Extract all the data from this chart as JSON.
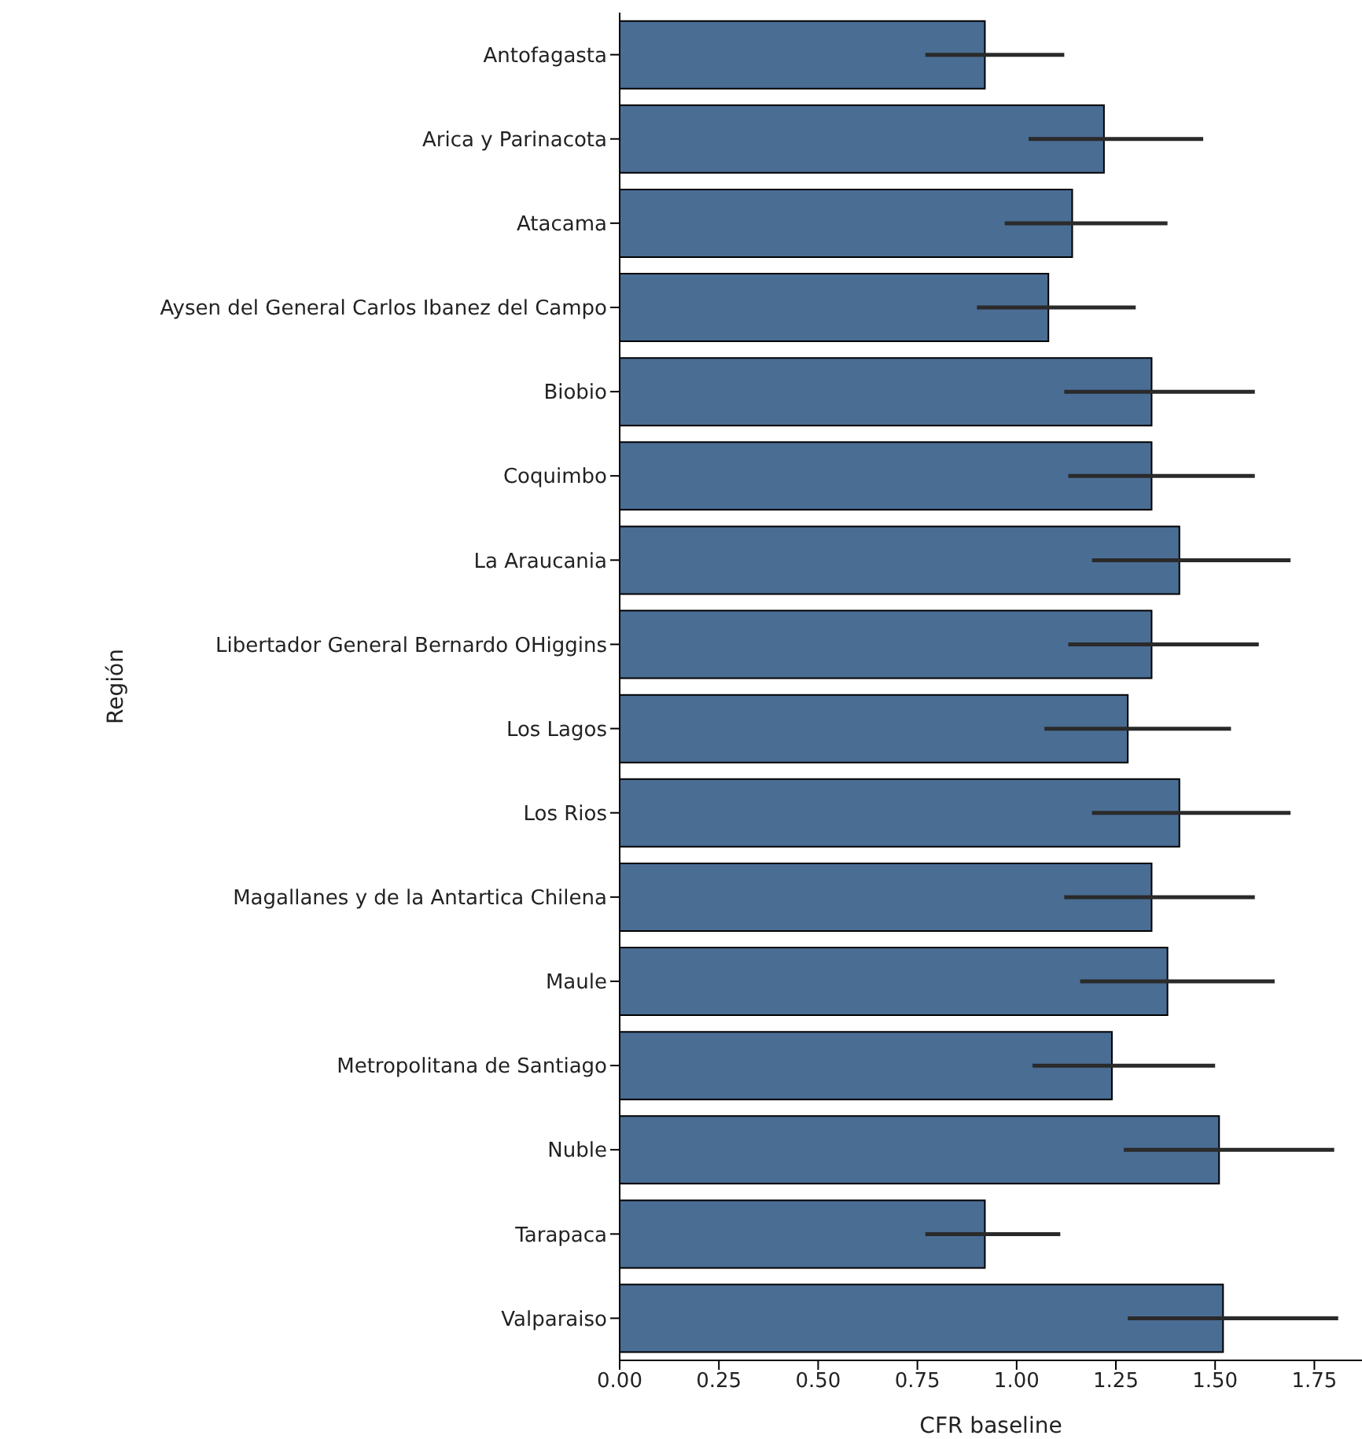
{
  "chart_data": {
    "type": "bar",
    "orientation": "horizontal",
    "xlabel": "CFR baseline",
    "ylabel": "Región",
    "categories": [
      "Antofagasta",
      "Arica y Parinacota",
      "Atacama",
      "Aysen del General Carlos Ibanez del Campo",
      "Biobio",
      "Coquimbo",
      "La Araucania",
      "Libertador General Bernardo OHiggins",
      "Los Lagos",
      "Los Rios",
      "Magallanes y de la Antartica Chilena",
      "Maule",
      "Metropolitana de Santiago",
      "Nuble",
      "Tarapaca",
      "Valparaiso"
    ],
    "values": [
      0.92,
      1.22,
      1.14,
      1.08,
      1.34,
      1.34,
      1.41,
      1.34,
      1.28,
      1.41,
      1.34,
      1.38,
      1.24,
      1.51,
      0.92,
      1.52
    ],
    "errors": [
      [
        0.77,
        1.12
      ],
      [
        1.03,
        1.47
      ],
      [
        0.97,
        1.38
      ],
      [
        0.9,
        1.3
      ],
      [
        1.12,
        1.6
      ],
      [
        1.13,
        1.6
      ],
      [
        1.19,
        1.69
      ],
      [
        1.13,
        1.61
      ],
      [
        1.07,
        1.54
      ],
      [
        1.19,
        1.69
      ],
      [
        1.12,
        1.6
      ],
      [
        1.16,
        1.65
      ],
      [
        1.04,
        1.5
      ],
      [
        1.27,
        1.8
      ],
      [
        0.77,
        1.11
      ],
      [
        1.28,
        1.81
      ]
    ],
    "color": "#4a6d94",
    "xlim": [
      0,
      1.87
    ],
    "xticks": [
      {
        "value": 0,
        "label": "0.00"
      },
      0.25,
      {
        "value": 0.5,
        "label": "0.50"
      },
      0.75,
      {
        "value": 1,
        "label": "1.00"
      },
      1.25,
      {
        "value": 1.5,
        "label": "1.50"
      },
      1.75
    ],
    "grid": false,
    "legend": false
  }
}
